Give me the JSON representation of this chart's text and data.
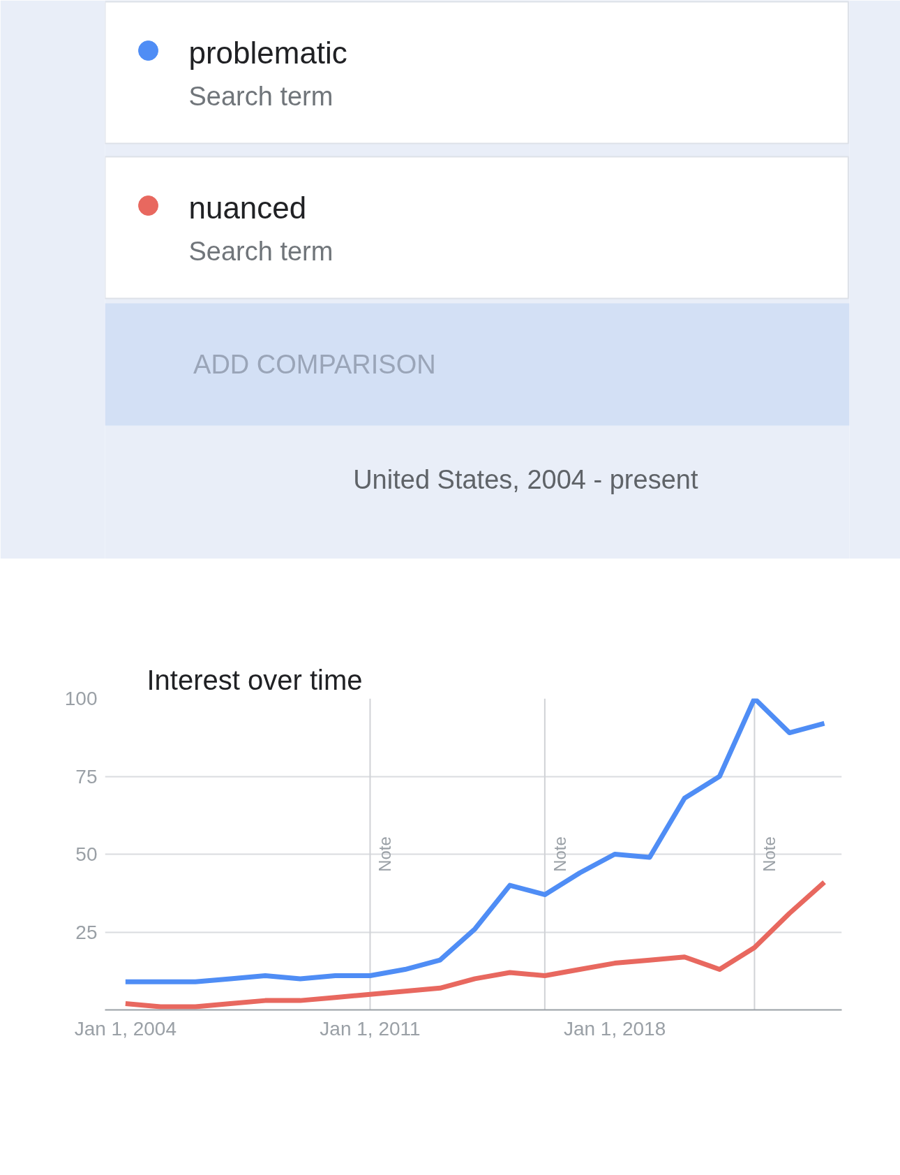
{
  "chart_data": {
    "type": "line",
    "title": "Interest over time",
    "x": [
      "2004",
      "2005",
      "2006",
      "2007",
      "2008",
      "2009",
      "2010",
      "2011",
      "2012",
      "2013",
      "2014",
      "2015",
      "2016",
      "2017",
      "2018",
      "2019",
      "2020",
      "2021",
      "2022",
      "2023",
      "2024"
    ],
    "series": [
      {
        "name": "problematic",
        "color": "#4f8df5",
        "values": [
          9,
          9,
          9,
          10,
          11,
          10,
          11,
          11,
          13,
          16,
          26,
          40,
          37,
          44,
          50,
          49,
          68,
          75,
          100,
          89,
          92
        ]
      },
      {
        "name": "nuanced",
        "color": "#e8685f",
        "values": [
          2,
          1,
          1,
          2,
          3,
          3,
          4,
          5,
          6,
          7,
          10,
          12,
          11,
          13,
          15,
          16,
          17,
          13,
          20,
          31,
          41
        ]
      }
    ],
    "xlim": [
      "2003-06",
      "2024-07"
    ],
    "xticks": [
      {
        "value": "2004-01-01",
        "label": "Jan 1, 2004"
      },
      {
        "value": "2011-01-01",
        "label": "Jan 1, 2011"
      },
      {
        "value": "2018-01-01",
        "label": "Jan 1, 2018"
      }
    ],
    "ylim": [
      0,
      100
    ],
    "yticks": [
      25,
      50,
      75,
      100
    ],
    "ref_lines": [
      {
        "axis": "x",
        "value": "2011-01-01",
        "label": "Note"
      },
      {
        "axis": "x",
        "value": "2016-01-01",
        "label": "Note"
      },
      {
        "axis": "x",
        "value": "2022-01-01",
        "label": "Note"
      }
    ],
    "annotations": [
      "Search term",
      "Search term",
      "ADD COMPARISON",
      "United States, 2004 - present"
    ],
    "grid": "y",
    "legend": "top",
    "marker": "none",
    "line_style": "solid"
  }
}
